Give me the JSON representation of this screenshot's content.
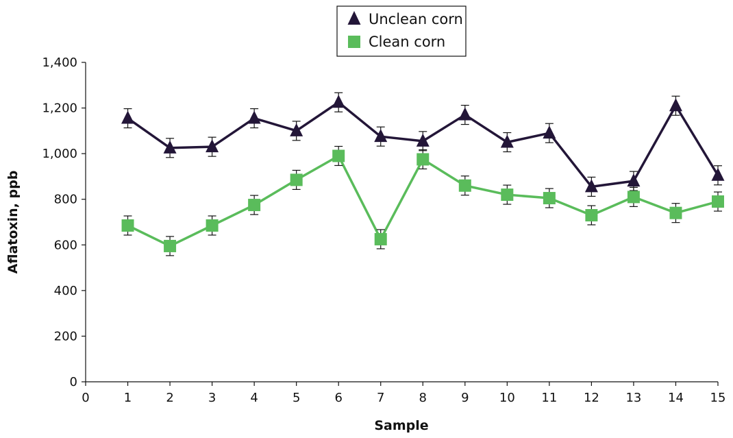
{
  "chart_data": {
    "type": "line",
    "xlabel": "Sample",
    "ylabel": "Aflatoxin, ppb",
    "xlim": [
      0,
      15
    ],
    "ylim": [
      0,
      1400
    ],
    "x_ticks": [
      0,
      1,
      2,
      3,
      4,
      5,
      6,
      7,
      8,
      9,
      10,
      11,
      12,
      13,
      14,
      15
    ],
    "y_ticks": [
      0,
      200,
      400,
      600,
      800,
      1000,
      1200,
      1400
    ],
    "y_tick_labels": [
      "0",
      "200",
      "400",
      "600",
      "800",
      "1,000",
      "1,200",
      "1,400"
    ],
    "grid": false,
    "legend_position": "top-center",
    "x": [
      1,
      2,
      3,
      4,
      5,
      6,
      7,
      8,
      9,
      10,
      11,
      12,
      13,
      14,
      15
    ],
    "series": [
      {
        "name": "Unclean corn",
        "marker": "triangle",
        "color": "#231638",
        "values": [
          1155,
          1025,
          1030,
          1155,
          1100,
          1225,
          1075,
          1055,
          1170,
          1050,
          1090,
          855,
          880,
          1210,
          905
        ],
        "error": [
          42,
          42,
          42,
          42,
          42,
          42,
          42,
          42,
          42,
          42,
          42,
          42,
          42,
          42,
          42
        ]
      },
      {
        "name": "Clean corn",
        "marker": "square",
        "color": "#5abc5b",
        "values": [
          685,
          595,
          685,
          775,
          885,
          990,
          625,
          975,
          860,
          820,
          805,
          730,
          810,
          740,
          790
        ],
        "error": [
          42,
          42,
          42,
          42,
          42,
          42,
          42,
          42,
          42,
          42,
          42,
          42,
          42,
          42,
          42
        ]
      }
    ]
  }
}
